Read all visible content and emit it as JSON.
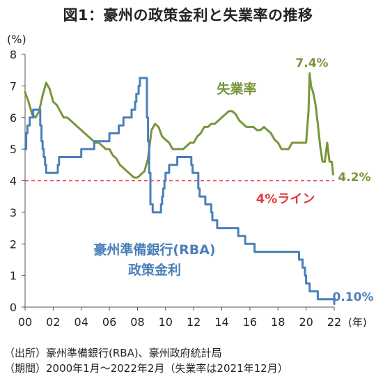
{
  "title": "図1：豪州の政策金利と失業率の推移",
  "source": "（出所）豪州準備銀行(RBA)、豪州政府統計局",
  "period": "（期間）2000年1月～2022年2月（失業率は2021年12月）",
  "chart_data": {
    "type": "line",
    "y_unit_label": "(%)",
    "x_unit_label": "(年)",
    "xlim": [
      0,
      22
    ],
    "ylim": [
      0,
      8
    ],
    "x_tick_labels": [
      "00",
      "02",
      "04",
      "06",
      "08",
      "10",
      "12",
      "14",
      "16",
      "18",
      "20",
      "22"
    ],
    "x_tick_values": [
      0,
      2,
      4,
      6,
      8,
      10,
      12,
      14,
      16,
      18,
      20,
      22
    ],
    "y_ticks": [
      0,
      1,
      2,
      3,
      4,
      5,
      6,
      7,
      8
    ],
    "grid": false,
    "reference_line": {
      "value": 4,
      "label": "4%ライン",
      "color": "#e03c3c",
      "style": "dashed"
    },
    "series": [
      {
        "name": "失業率",
        "color": "#78963a",
        "end_label": "4.2%",
        "peak_label": "7.4%",
        "x": [
          0.0,
          0.25,
          0.5,
          0.75,
          1.0,
          1.25,
          1.5,
          1.75,
          2.0,
          2.25,
          2.5,
          2.75,
          3.0,
          3.25,
          3.5,
          3.75,
          4.0,
          4.25,
          4.5,
          4.75,
          5.0,
          5.25,
          5.5,
          5.75,
          6.0,
          6.25,
          6.5,
          6.75,
          7.0,
          7.25,
          7.5,
          7.75,
          8.0,
          8.25,
          8.5,
          8.75,
          9.0,
          9.25,
          9.5,
          9.75,
          10.0,
          10.25,
          10.5,
          10.75,
          11.0,
          11.25,
          11.5,
          11.75,
          12.0,
          12.25,
          12.5,
          12.75,
          13.0,
          13.25,
          13.5,
          13.75,
          14.0,
          14.25,
          14.5,
          14.75,
          15.0,
          15.25,
          15.5,
          15.75,
          16.0,
          16.25,
          16.5,
          16.75,
          17.0,
          17.25,
          17.5,
          17.75,
          18.0,
          18.25,
          18.5,
          18.75,
          19.0,
          19.25,
          19.5,
          19.75,
          20.0,
          20.17,
          20.25,
          20.35,
          20.5,
          20.67,
          20.83,
          21.0,
          21.17,
          21.33,
          21.5,
          21.67,
          21.83,
          21.92
        ],
        "y": [
          6.8,
          6.5,
          6.1,
          6.0,
          6.2,
          6.7,
          7.1,
          6.9,
          6.5,
          6.4,
          6.2,
          6.0,
          6.0,
          5.9,
          5.8,
          5.7,
          5.6,
          5.5,
          5.4,
          5.3,
          5.2,
          5.2,
          5.1,
          5.0,
          5.0,
          4.8,
          4.7,
          4.5,
          4.4,
          4.3,
          4.2,
          4.1,
          4.1,
          4.2,
          4.3,
          4.7,
          5.6,
          5.8,
          5.7,
          5.4,
          5.3,
          5.2,
          5.0,
          5.0,
          5.0,
          5.0,
          5.1,
          5.2,
          5.2,
          5.4,
          5.5,
          5.7,
          5.7,
          5.8,
          5.8,
          5.9,
          6.0,
          6.1,
          6.2,
          6.2,
          6.1,
          5.9,
          5.8,
          5.7,
          5.7,
          5.7,
          5.6,
          5.6,
          5.7,
          5.6,
          5.5,
          5.3,
          5.2,
          5.0,
          5.0,
          5.0,
          5.2,
          5.2,
          5.2,
          5.2,
          5.2,
          6.2,
          7.4,
          7.0,
          6.8,
          6.4,
          5.8,
          5.1,
          4.6,
          4.6,
          5.2,
          4.6,
          4.6,
          4.2
        ]
      },
      {
        "name": "豪州準備銀行(RBA) 政策金利",
        "label_line1": "豪州準備銀行(RBA)",
        "label_line2": "政策金利",
        "color": "#4a7fba",
        "end_label": "0.10%",
        "x": [
          0.0,
          0.08,
          0.17,
          0.33,
          0.58,
          0.83,
          1.08,
          1.17,
          1.25,
          1.33,
          1.42,
          1.5,
          1.67,
          1.83,
          2.0,
          2.33,
          2.42,
          2.92,
          3.0,
          3.92,
          4.0,
          4.92,
          5.0,
          5.92,
          6.0,
          6.33,
          6.42,
          6.58,
          6.67,
          6.92,
          7.0,
          7.5,
          7.58,
          7.75,
          7.83,
          7.92,
          8.0,
          8.08,
          8.17,
          8.58,
          8.67,
          8.75,
          8.83,
          8.92,
          9.0,
          9.08,
          9.17,
          9.25,
          9.67,
          9.75,
          9.83,
          9.92,
          10.0,
          10.17,
          10.25,
          10.33,
          10.75,
          10.83,
          11.75,
          11.83,
          11.92,
          12.25,
          12.33,
          12.42,
          12.75,
          12.83,
          13.25,
          13.33,
          13.58,
          13.67,
          15.08,
          15.17,
          15.25,
          15.58,
          15.67,
          16.25,
          16.33,
          19.42,
          19.5,
          19.67,
          19.75,
          19.92,
          20.0,
          20.17,
          20.25,
          20.75,
          20.83,
          22.0
        ],
        "y": [
          5.0,
          5.5,
          5.75,
          6.0,
          6.25,
          6.25,
          5.75,
          5.25,
          5.0,
          4.75,
          4.5,
          4.25,
          4.25,
          4.25,
          4.25,
          4.5,
          4.75,
          4.75,
          4.75,
          4.75,
          5.0,
          5.25,
          5.25,
          5.25,
          5.5,
          5.5,
          5.5,
          5.5,
          5.75,
          5.75,
          6.0,
          6.0,
          6.25,
          6.25,
          6.5,
          6.75,
          6.75,
          7.0,
          7.25,
          7.25,
          6.0,
          5.25,
          4.25,
          3.25,
          3.25,
          3.0,
          3.0,
          3.0,
          3.25,
          3.5,
          3.75,
          4.0,
          4.25,
          4.25,
          4.5,
          4.5,
          4.5,
          4.75,
          4.75,
          4.5,
          4.25,
          4.25,
          3.75,
          3.5,
          3.5,
          3.25,
          3.0,
          2.75,
          2.75,
          2.5,
          2.5,
          2.25,
          2.25,
          2.25,
          2.0,
          2.0,
          1.75,
          1.75,
          1.5,
          1.5,
          1.25,
          1.0,
          0.75,
          0.75,
          0.5,
          0.5,
          0.25,
          0.1
        ]
      }
    ]
  }
}
